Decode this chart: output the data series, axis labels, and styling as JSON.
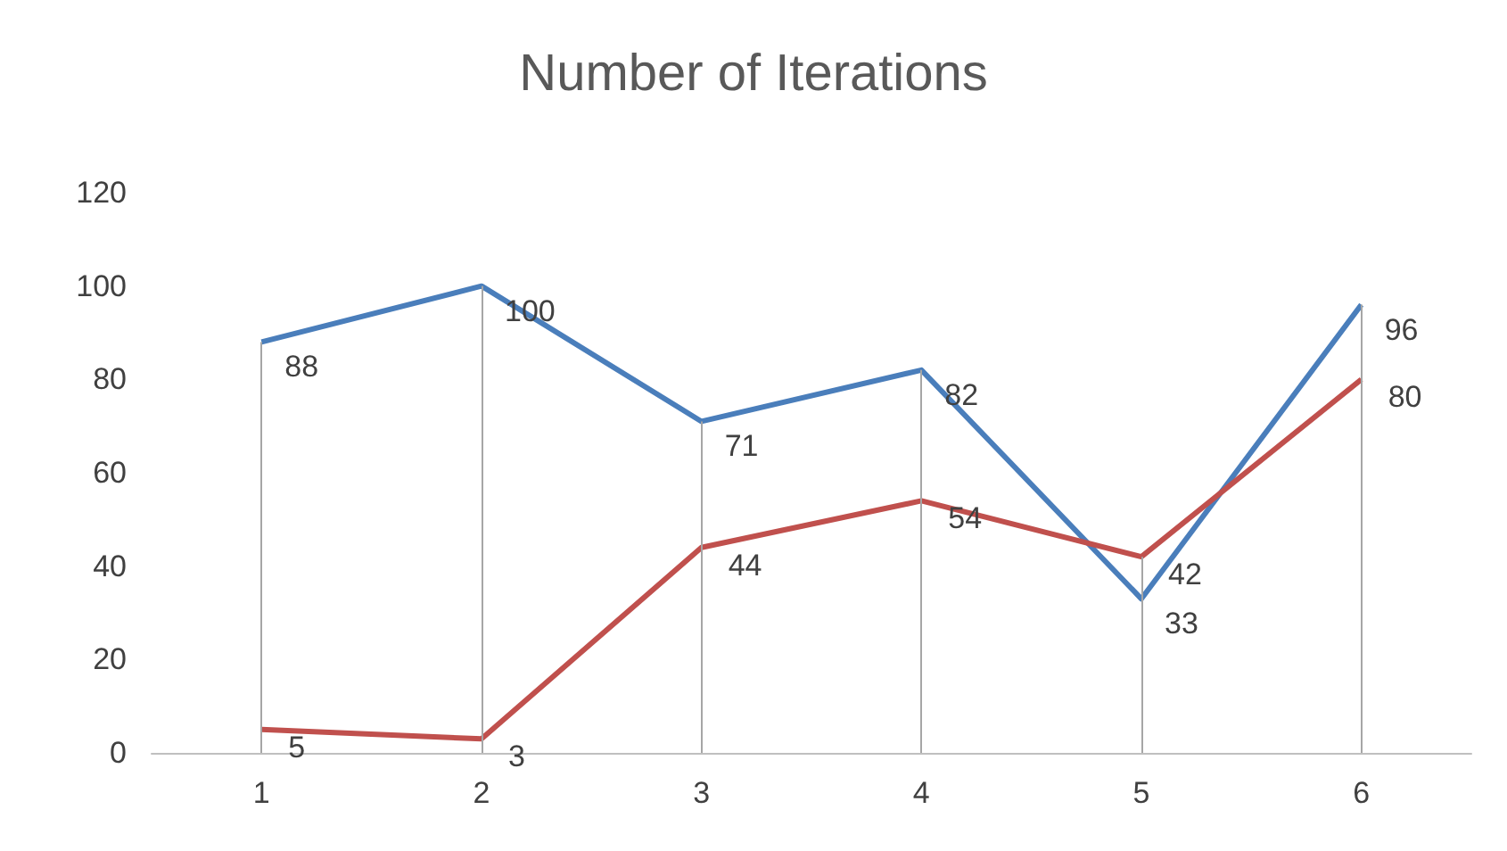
{
  "chart_data": {
    "type": "line",
    "title": "Number of Iterations",
    "categories": [
      "1",
      "2",
      "3",
      "4",
      "5",
      "6"
    ],
    "series": [
      {
        "color": "#4a7ebb",
        "values": [
          88,
          100,
          71,
          82,
          33,
          96
        ]
      },
      {
        "color": "#c0504d",
        "values": [
          5,
          3,
          44,
          54,
          42,
          80
        ]
      }
    ],
    "ylim": [
      0,
      120
    ],
    "yticks": [
      0,
      20,
      40,
      60,
      80,
      100,
      120
    ],
    "grid": "x",
    "data_labels": true,
    "marker": "none",
    "line_style": "solid"
  }
}
